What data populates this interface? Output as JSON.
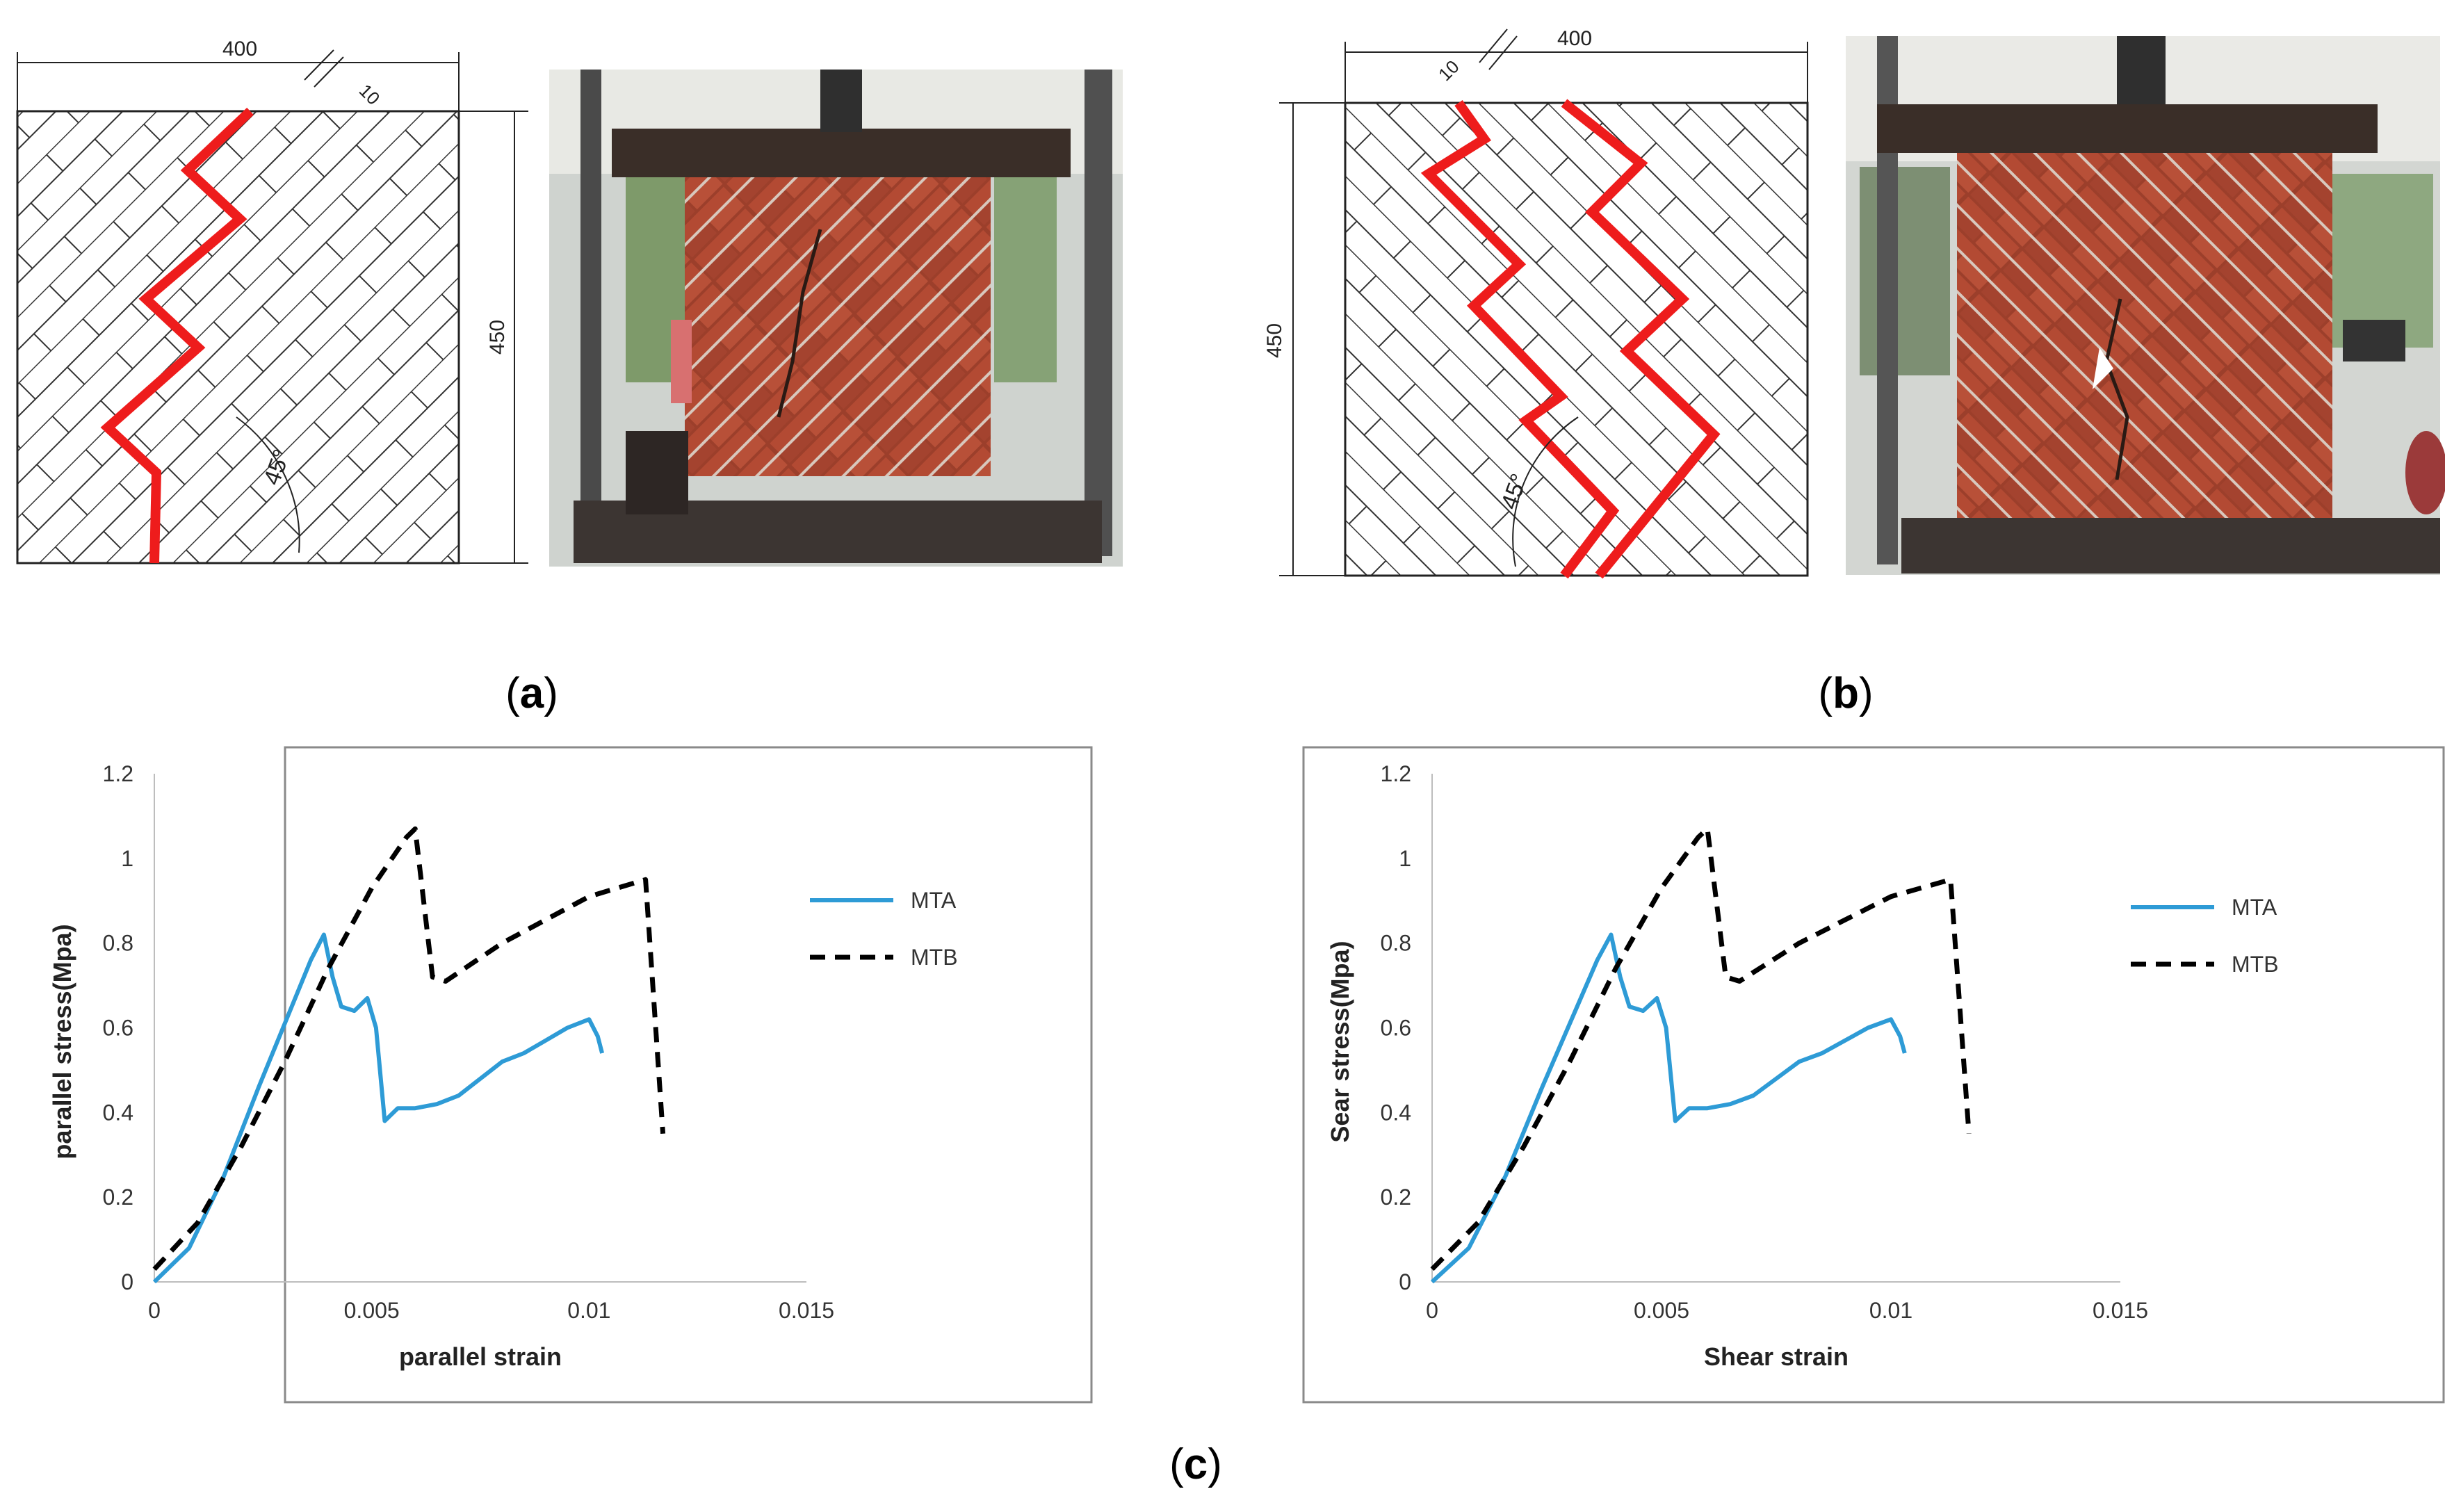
{
  "panel_a": {
    "caption_letter": "a",
    "dim_width": "400",
    "dim_height": "450",
    "dim_offset": "10",
    "angle_label": "45°"
  },
  "panel_b": {
    "caption_letter": "b",
    "dim_width": "400",
    "dim_height": "450",
    "dim_offset": "10",
    "angle_label": "45°"
  },
  "panel_c": {
    "caption_letter": "c"
  },
  "colors": {
    "crack_red": "#ee1c1c",
    "mta_blue": "#2e9bd6",
    "mtb_black": "#000000",
    "brick_red": "#a8432e",
    "steel_frame": "#3a3a3a"
  },
  "chart_data": [
    {
      "type": "line",
      "xlabel": "parallel strain",
      "ylabel": "parallel stress(Mpa)",
      "xlim": [
        0,
        0.015
      ],
      "ylim": [
        0,
        1.2
      ],
      "x_ticks": [
        "0",
        "0.005",
        "0.01",
        "0.015"
      ],
      "y_ticks": [
        "0",
        "0.2",
        "0.4",
        "0.6",
        "0.8",
        "1",
        "1.2"
      ],
      "legend_position": "right",
      "series": [
        {
          "name": "MTA",
          "style": "solid",
          "x": [
            0,
            0.0008,
            0.0016,
            0.0024,
            0.0032,
            0.0036,
            0.0039,
            0.0041,
            0.0043,
            0.0046,
            0.0049,
            0.0051,
            0.0053,
            0.0056,
            0.006,
            0.0065,
            0.007,
            0.0075,
            0.008,
            0.0085,
            0.009,
            0.0095,
            0.01,
            0.0102,
            0.0103
          ],
          "y": [
            0,
            0.08,
            0.25,
            0.46,
            0.66,
            0.76,
            0.82,
            0.72,
            0.65,
            0.64,
            0.67,
            0.6,
            0.38,
            0.41,
            0.41,
            0.42,
            0.44,
            0.48,
            0.52,
            0.54,
            0.57,
            0.6,
            0.62,
            0.58,
            0.54
          ]
        },
        {
          "name": "MTB",
          "style": "dashed",
          "x": [
            0,
            0.001,
            0.002,
            0.003,
            0.004,
            0.005,
            0.0058,
            0.006,
            0.0064,
            0.0067,
            0.008,
            0.01,
            0.0113,
            0.0115,
            0.0117
          ],
          "y": [
            0.03,
            0.14,
            0.32,
            0.52,
            0.74,
            0.93,
            1.05,
            1.07,
            0.72,
            0.71,
            0.8,
            0.91,
            0.95,
            0.65,
            0.35
          ]
        }
      ]
    },
    {
      "type": "line",
      "xlabel": "Shear strain",
      "ylabel": "Sear stress(Mpa)",
      "xlim": [
        0,
        0.015
      ],
      "ylim": [
        0,
        1.2
      ],
      "x_ticks": [
        "0",
        "0.005",
        "0.01",
        "0.015"
      ],
      "y_ticks": [
        "0",
        "0.2",
        "0.4",
        "0.6",
        "0.8",
        "1",
        "1.2"
      ],
      "legend_position": "right",
      "series": [
        {
          "name": "MTA",
          "style": "solid",
          "x": [
            0,
            0.0008,
            0.0016,
            0.0024,
            0.0032,
            0.0036,
            0.0039,
            0.0041,
            0.0043,
            0.0046,
            0.0049,
            0.0051,
            0.0053,
            0.0056,
            0.006,
            0.0065,
            0.007,
            0.0075,
            0.008,
            0.0085,
            0.009,
            0.0095,
            0.01,
            0.0102,
            0.0103
          ],
          "y": [
            0,
            0.08,
            0.25,
            0.46,
            0.66,
            0.76,
            0.82,
            0.72,
            0.65,
            0.64,
            0.67,
            0.6,
            0.38,
            0.41,
            0.41,
            0.42,
            0.44,
            0.48,
            0.52,
            0.54,
            0.57,
            0.6,
            0.62,
            0.58,
            0.54
          ]
        },
        {
          "name": "MTB",
          "style": "dashed",
          "x": [
            0,
            0.001,
            0.002,
            0.003,
            0.004,
            0.005,
            0.0058,
            0.006,
            0.0064,
            0.0067,
            0.008,
            0.01,
            0.0113,
            0.0115,
            0.0117
          ],
          "y": [
            0.03,
            0.14,
            0.32,
            0.52,
            0.74,
            0.93,
            1.05,
            1.07,
            0.72,
            0.71,
            0.8,
            0.91,
            0.95,
            0.65,
            0.35
          ]
        }
      ]
    }
  ]
}
